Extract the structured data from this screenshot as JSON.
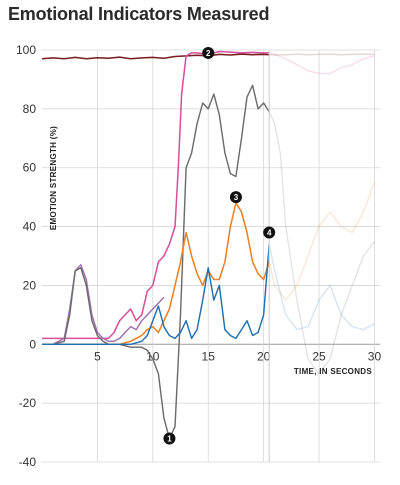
{
  "chart_data": {
    "type": "line",
    "title": "Emotional Indicators Measured",
    "ylabel": "EMOTION STRENGTH (%)",
    "xlabel": "TIME, IN SECONDS",
    "xlim": [
      0,
      30.5
    ],
    "ylim": [
      -40,
      100
    ],
    "x_ticks": [
      "5",
      "10",
      "15",
      "20",
      "25",
      "30"
    ],
    "y_ticks": [
      "100",
      "80",
      "60",
      "40",
      "20",
      "0",
      "-20",
      "-40"
    ],
    "grid": true,
    "highlight_until": 20.5,
    "colors": {
      "black": "#2a2a2a",
      "darkred": "#7a1f1f",
      "pink": "#d9509a",
      "gray": "#6b6b6b",
      "orange": "#f08020",
      "blue": "#1f6fae",
      "purple": "#a070b0",
      "grid": "#d6d6d6",
      "divider": "#cccccc"
    },
    "series": [
      {
        "color": "darkred",
        "width": 1.5,
        "x": [
          0,
          1,
          2,
          3,
          4,
          5,
          6,
          7,
          8,
          9,
          10,
          11,
          12,
          13,
          14,
          15,
          16,
          17,
          18,
          19,
          20,
          21,
          22,
          23,
          24,
          25,
          26,
          27,
          28,
          29,
          30
        ],
        "y": [
          97,
          97.3,
          97,
          97.5,
          97,
          97.4,
          97.2,
          97.6,
          97,
          97.3,
          97.5,
          97.2,
          97.8,
          98,
          98.2,
          98,
          98.5,
          98.3,
          98.6,
          98.4,
          98.5,
          98.3,
          98.4,
          98.6,
          98.4,
          98.5,
          98.6,
          98.4,
          98.5,
          98.6,
          98.5
        ]
      },
      {
        "color": "pink",
        "width": 1.5,
        "x": [
          0,
          1,
          2,
          3,
          4,
          5,
          6,
          6.5,
          7,
          7.5,
          8,
          8.5,
          9,
          9.5,
          10,
          10.5,
          11,
          11.5,
          12,
          12.3,
          12.6,
          13,
          13.5,
          14,
          15,
          16,
          17,
          18,
          19,
          20,
          20.5,
          21,
          22,
          23,
          24,
          25,
          26,
          27,
          28,
          29,
          30
        ],
        "y": [
          2,
          2,
          2,
          2,
          2,
          2,
          2,
          4,
          8,
          10,
          12,
          8,
          10,
          18,
          20,
          28,
          30,
          34,
          40,
          60,
          85,
          98,
          99,
          99,
          98.5,
          99.5,
          99.3,
          99,
          99.2,
          99,
          99,
          98.5,
          97,
          95,
          93,
          92,
          92,
          94,
          95,
          97,
          98
        ]
      },
      {
        "color": "purple",
        "width": 1.4,
        "x": [
          0,
          1,
          2,
          2.5,
          3,
          3.5,
          4,
          4.5,
          5,
          5.5,
          6,
          6.5,
          7,
          7.5,
          8,
          8.5,
          9,
          9.5,
          10,
          10.5,
          11
        ],
        "y": [
          0,
          0,
          2,
          12,
          25,
          27,
          22,
          10,
          4,
          2,
          1,
          1,
          2,
          4,
          6,
          5,
          8,
          10,
          12,
          14,
          16
        ]
      },
      {
        "color": "gray",
        "width": 1.4,
        "x": [
          0,
          1,
          2,
          2.5,
          3,
          3.5,
          4,
          4.5,
          5,
          5.5,
          6,
          7,
          8,
          9,
          9.5,
          10,
          10.5,
          11,
          11.5,
          12,
          12.5,
          13,
          13.5,
          14,
          14.5,
          15,
          15.5,
          16,
          16.5,
          17,
          17.5,
          18,
          18.5,
          19,
          19.5,
          20,
          20.5,
          21,
          21.5,
          22,
          23,
          24,
          25,
          26,
          27,
          28,
          29,
          30
        ],
        "y": [
          0,
          0,
          1,
          10,
          25,
          26,
          20,
          8,
          3,
          1,
          0,
          0,
          -1,
          -1,
          -2,
          -5,
          -10,
          -25,
          -32,
          -28,
          10,
          60,
          65,
          75,
          82,
          80,
          85,
          78,
          65,
          58,
          57,
          70,
          84,
          88,
          80,
          82,
          79,
          75,
          65,
          40,
          15,
          -5,
          -10,
          -5,
          10,
          20,
          30,
          35
        ]
      },
      {
        "color": "orange",
        "width": 1.5,
        "x": [
          0,
          6,
          7,
          8,
          8.5,
          9,
          9.5,
          10,
          10.5,
          11,
          11.5,
          12,
          12.5,
          13,
          13.5,
          14,
          14.5,
          15,
          15.5,
          16,
          16.5,
          17,
          17.5,
          18,
          18.5,
          19,
          19.5,
          20,
          20.5,
          21,
          22,
          23,
          24,
          25,
          26,
          27,
          28,
          29,
          30
        ],
        "y": [
          0,
          0,
          0,
          1,
          2,
          3,
          5,
          6,
          4,
          8,
          12,
          20,
          28,
          38,
          30,
          24,
          20,
          25,
          22,
          22,
          28,
          40,
          48,
          45,
          38,
          28,
          24,
          22,
          28,
          20,
          15,
          20,
          30,
          40,
          45,
          40,
          38,
          45,
          55
        ]
      },
      {
        "color": "blue",
        "width": 1.4,
        "x": [
          0,
          8,
          9,
          9.5,
          10,
          10.5,
          11,
          11.5,
          12,
          12.5,
          13,
          13.5,
          14,
          14.5,
          15,
          15.5,
          16,
          16.5,
          17,
          17.5,
          18,
          18.5,
          19,
          19.5,
          20,
          20.5,
          21,
          22,
          23,
          24,
          25,
          26,
          27,
          28,
          29,
          30
        ],
        "y": [
          0,
          0,
          1,
          3,
          8,
          13,
          6,
          3,
          2,
          4,
          8,
          2,
          5,
          15,
          26,
          15,
          20,
          5,
          3,
          2,
          5,
          8,
          3,
          4,
          10,
          34,
          25,
          10,
          5,
          6,
          15,
          20,
          10,
          6,
          5,
          7
        ]
      }
    ],
    "markers": [
      {
        "label": "1",
        "x": 11.5,
        "y": -32
      },
      {
        "label": "2",
        "x": 15,
        "y": 99
      },
      {
        "label": "3",
        "x": 17.5,
        "y": 50
      },
      {
        "label": "4",
        "x": 20.5,
        "y": 38
      }
    ]
  }
}
